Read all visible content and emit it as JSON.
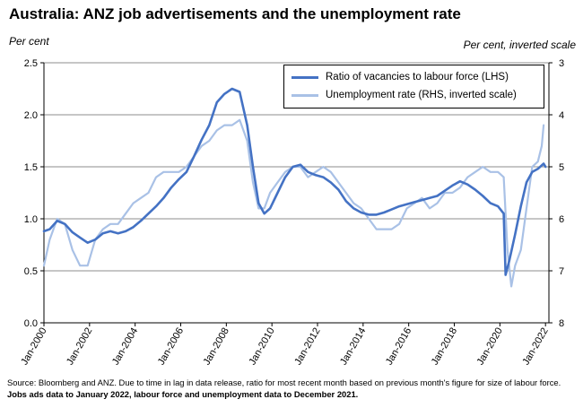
{
  "title": "Australia: ANZ job advertisements and the unemployment rate",
  "source_note": "Source: Bloomberg and ANZ.  Due to time in lag in data release, ratio for most recent month based on previous month's figure for size of labour force.",
  "source_note_bold": "Jobs ads data to January 2022, labour force and unemployment data to December 2021.",
  "chart_data": {
    "type": "line",
    "title": "Australia: ANZ job advertisements and the unemployment rate",
    "y_left_label": "Per cent",
    "y_right_label": "Per cent, inverted scale",
    "y_left_range": [
      0.0,
      2.5
    ],
    "y_left_ticks": [
      "0.0",
      "0.5",
      "1.0",
      "1.5",
      "2.0",
      "2.5"
    ],
    "y_right_range": [
      3,
      8
    ],
    "y_right_inverted": true,
    "y_right_ticks": [
      "3",
      "4",
      "5",
      "6",
      "7",
      "8"
    ],
    "x_ticks": [
      "Jan-2000",
      "Jan-2002",
      "Jan-2004",
      "Jan-2006",
      "Jan-2008",
      "Jan-2010",
      "Jan-2012",
      "Jan-2014",
      "Jan-2016",
      "Jan-2018",
      "Jan-2020",
      "Jan-2022"
    ],
    "grid": true,
    "legend_position": "top-right",
    "series": [
      {
        "name": "Ratio of vacancies to labour force (LHS)",
        "axis": "left",
        "color": "#4472c4",
        "points": [
          [
            "2000-01",
            0.88
          ],
          [
            "2000-04",
            0.9
          ],
          [
            "2000-08",
            0.98
          ],
          [
            "2000-12",
            0.95
          ],
          [
            "2001-04",
            0.87
          ],
          [
            "2001-08",
            0.82
          ],
          [
            "2001-12",
            0.77
          ],
          [
            "2002-04",
            0.8
          ],
          [
            "2002-08",
            0.86
          ],
          [
            "2002-12",
            0.88
          ],
          [
            "2003-04",
            0.86
          ],
          [
            "2003-08",
            0.88
          ],
          [
            "2003-12",
            0.92
          ],
          [
            "2004-04",
            0.98
          ],
          [
            "2004-08",
            1.05
          ],
          [
            "2004-12",
            1.12
          ],
          [
            "2005-04",
            1.2
          ],
          [
            "2005-08",
            1.3
          ],
          [
            "2005-12",
            1.38
          ],
          [
            "2006-04",
            1.45
          ],
          [
            "2006-08",
            1.6
          ],
          [
            "2006-12",
            1.76
          ],
          [
            "2007-04",
            1.9
          ],
          [
            "2007-08",
            2.12
          ],
          [
            "2007-12",
            2.2
          ],
          [
            "2008-04",
            2.25
          ],
          [
            "2008-08",
            2.22
          ],
          [
            "2008-12",
            1.9
          ],
          [
            "2009-03",
            1.5
          ],
          [
            "2009-06",
            1.15
          ],
          [
            "2009-09",
            1.05
          ],
          [
            "2009-12",
            1.1
          ],
          [
            "2010-04",
            1.25
          ],
          [
            "2010-08",
            1.4
          ],
          [
            "2010-12",
            1.5
          ],
          [
            "2011-04",
            1.52
          ],
          [
            "2011-08",
            1.45
          ],
          [
            "2011-12",
            1.42
          ],
          [
            "2012-04",
            1.4
          ],
          [
            "2012-08",
            1.35
          ],
          [
            "2012-12",
            1.28
          ],
          [
            "2013-04",
            1.17
          ],
          [
            "2013-08",
            1.1
          ],
          [
            "2013-12",
            1.06
          ],
          [
            "2014-04",
            1.04
          ],
          [
            "2014-08",
            1.04
          ],
          [
            "2014-12",
            1.06
          ],
          [
            "2015-04",
            1.09
          ],
          [
            "2015-08",
            1.12
          ],
          [
            "2015-12",
            1.14
          ],
          [
            "2016-04",
            1.16
          ],
          [
            "2016-08",
            1.18
          ],
          [
            "2016-12",
            1.2
          ],
          [
            "2017-04",
            1.22
          ],
          [
            "2017-08",
            1.27
          ],
          [
            "2017-12",
            1.32
          ],
          [
            "2018-04",
            1.36
          ],
          [
            "2018-08",
            1.33
          ],
          [
            "2018-12",
            1.28
          ],
          [
            "2019-04",
            1.22
          ],
          [
            "2019-08",
            1.15
          ],
          [
            "2019-12",
            1.12
          ],
          [
            "2020-03",
            1.05
          ],
          [
            "2020-04",
            0.46
          ],
          [
            "2020-06",
            0.6
          ],
          [
            "2020-09",
            0.85
          ],
          [
            "2020-12",
            1.12
          ],
          [
            "2021-03",
            1.35
          ],
          [
            "2021-06",
            1.45
          ],
          [
            "2021-09",
            1.48
          ],
          [
            "2021-12",
            1.53
          ],
          [
            "2022-01",
            1.5
          ]
        ]
      },
      {
        "name": "Unemployment rate (RHS, inverted scale)",
        "axis": "right",
        "color": "#a9c1e6",
        "points": [
          [
            "2000-01",
            6.9
          ],
          [
            "2000-04",
            6.4
          ],
          [
            "2000-08",
            6.0
          ],
          [
            "2000-12",
            6.1
          ],
          [
            "2001-04",
            6.6
          ],
          [
            "2001-08",
            6.9
          ],
          [
            "2001-12",
            6.9
          ],
          [
            "2002-04",
            6.4
          ],
          [
            "2002-08",
            6.2
          ],
          [
            "2002-12",
            6.1
          ],
          [
            "2003-04",
            6.1
          ],
          [
            "2003-08",
            5.9
          ],
          [
            "2003-12",
            5.7
          ],
          [
            "2004-04",
            5.6
          ],
          [
            "2004-08",
            5.5
          ],
          [
            "2004-12",
            5.2
          ],
          [
            "2005-04",
            5.1
          ],
          [
            "2005-08",
            5.1
          ],
          [
            "2005-12",
            5.1
          ],
          [
            "2006-04",
            5.0
          ],
          [
            "2006-08",
            4.8
          ],
          [
            "2006-12",
            4.6
          ],
          [
            "2007-04",
            4.5
          ],
          [
            "2007-08",
            4.3
          ],
          [
            "2007-12",
            4.2
          ],
          [
            "2008-04",
            4.2
          ],
          [
            "2008-08",
            4.1
          ],
          [
            "2008-12",
            4.5
          ],
          [
            "2009-03",
            5.3
          ],
          [
            "2009-06",
            5.8
          ],
          [
            "2009-09",
            5.8
          ],
          [
            "2009-12",
            5.5
          ],
          [
            "2010-04",
            5.3
          ],
          [
            "2010-08",
            5.1
          ],
          [
            "2010-12",
            5.0
          ],
          [
            "2011-04",
            5.0
          ],
          [
            "2011-08",
            5.2
          ],
          [
            "2011-12",
            5.1
          ],
          [
            "2012-04",
            5.0
          ],
          [
            "2012-08",
            5.1
          ],
          [
            "2012-12",
            5.3
          ],
          [
            "2013-04",
            5.5
          ],
          [
            "2013-08",
            5.7
          ],
          [
            "2013-12",
            5.8
          ],
          [
            "2014-04",
            6.0
          ],
          [
            "2014-08",
            6.2
          ],
          [
            "2014-12",
            6.2
          ],
          [
            "2015-04",
            6.2
          ],
          [
            "2015-08",
            6.1
          ],
          [
            "2015-12",
            5.8
          ],
          [
            "2016-04",
            5.7
          ],
          [
            "2016-08",
            5.6
          ],
          [
            "2016-12",
            5.8
          ],
          [
            "2017-04",
            5.7
          ],
          [
            "2017-08",
            5.5
          ],
          [
            "2017-12",
            5.5
          ],
          [
            "2018-04",
            5.4
          ],
          [
            "2018-08",
            5.2
          ],
          [
            "2018-12",
            5.1
          ],
          [
            "2019-04",
            5.0
          ],
          [
            "2019-08",
            5.1
          ],
          [
            "2019-12",
            5.1
          ],
          [
            "2020-03",
            5.2
          ],
          [
            "2020-05",
            6.6
          ],
          [
            "2020-07",
            7.3
          ],
          [
            "2020-09",
            6.9
          ],
          [
            "2020-12",
            6.6
          ],
          [
            "2021-03",
            5.8
          ],
          [
            "2021-06",
            5.0
          ],
          [
            "2021-09",
            4.9
          ],
          [
            "2021-11",
            4.6
          ],
          [
            "2021-12",
            4.2
          ]
        ]
      }
    ]
  }
}
